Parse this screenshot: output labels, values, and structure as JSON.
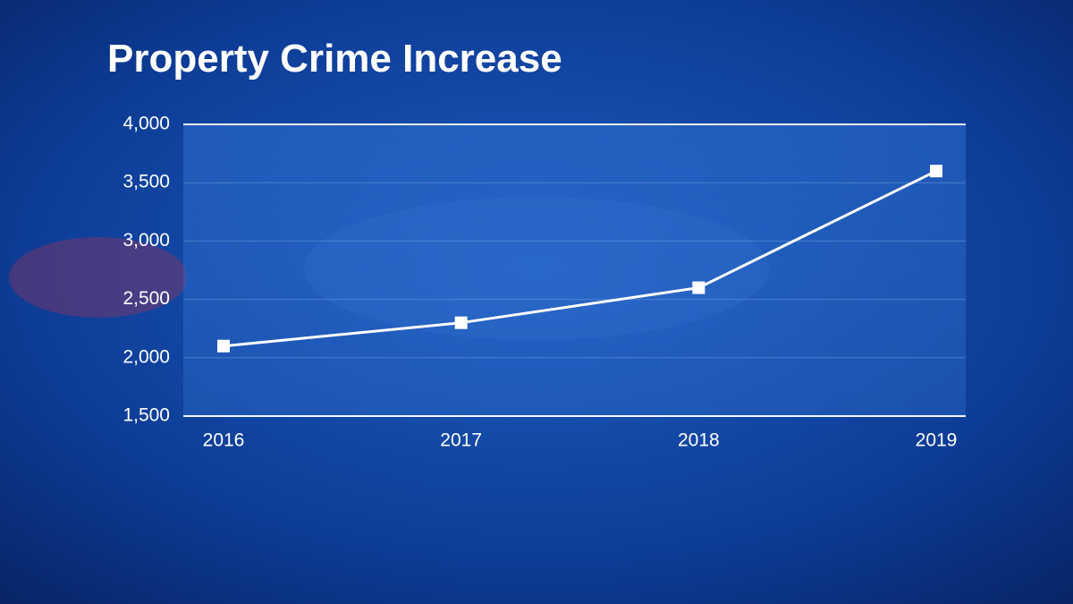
{
  "chart_data": {
    "type": "line",
    "title": "Property Crime Increase",
    "categories": [
      "2016",
      "2017",
      "2018",
      "2019"
    ],
    "values": [
      2100,
      2300,
      2600,
      3600
    ],
    "color": "#ffffff",
    "ylim": [
      1500,
      4000
    ],
    "yticks": [
      {
        "value": 1500,
        "label": "1,500"
      },
      {
        "value": 2000,
        "label": "2,000"
      },
      {
        "value": 2500,
        "label": "2,500"
      },
      {
        "value": 3000,
        "label": "3,000"
      },
      {
        "value": 3500,
        "label": "3,500"
      },
      {
        "value": 4000,
        "label": "4,000"
      }
    ],
    "grid": true
  }
}
